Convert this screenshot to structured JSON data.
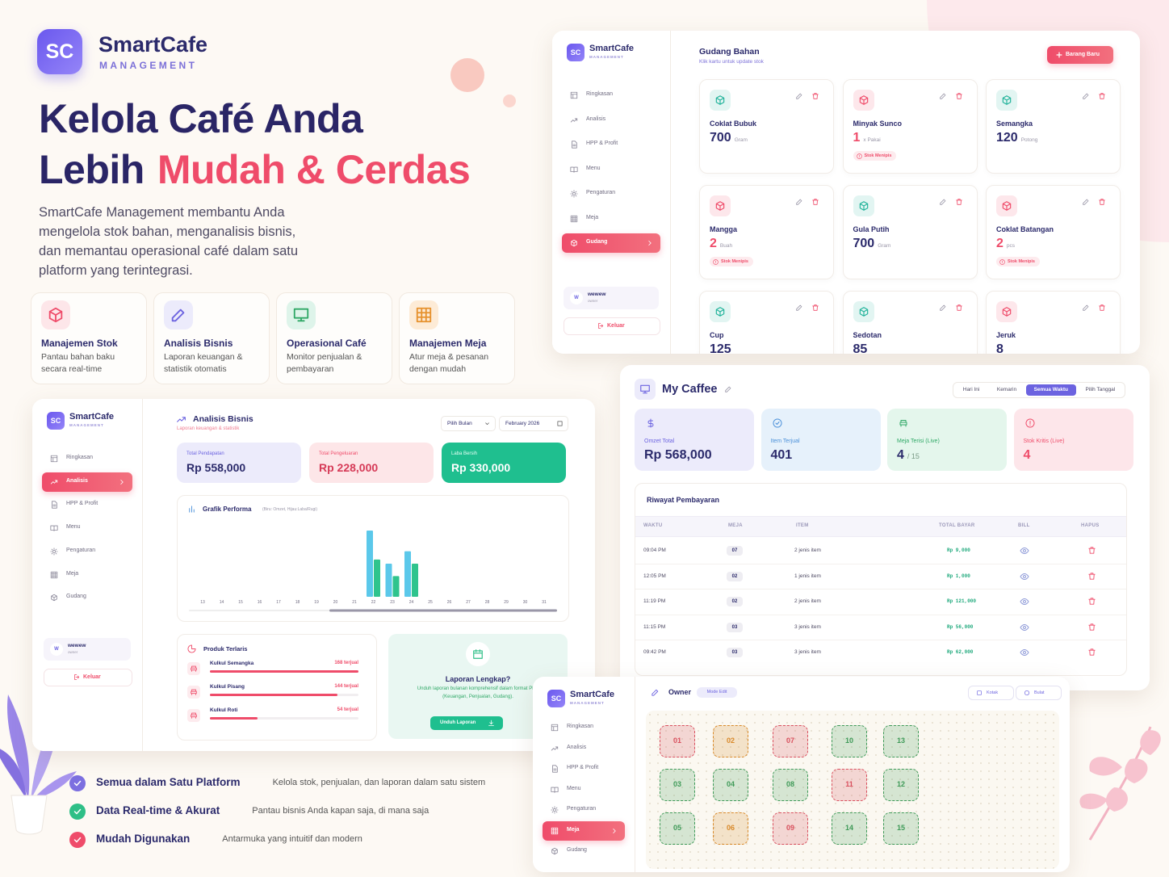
{
  "brand": {
    "logo": "SC",
    "name": "SmartCafe",
    "tagline": "MANAGEMENT"
  },
  "hero": {
    "line1": "Kelola Café Anda",
    "line2_plain": "Lebih",
    "line2_accent": "Mudah & Cerdas",
    "description": "SmartCafe Management membantu Anda mengelola stok bahan, menganalisis bisnis, dan memantau operasional café dalam satu platform yang terintegrasi."
  },
  "features": [
    {
      "title": "Manajemen Stok",
      "description": "Pantau bahan baku secara real-time"
    },
    {
      "title": "Analisis Bisnis",
      "description": "Laporan keuangan & statistik otomatis"
    },
    {
      "title": "Operasional Café",
      "description": "Monitor penjualan & pembayaran"
    },
    {
      "title": "Manajemen Meja",
      "description": "Atur meja & pesanan dengan mudah"
    }
  ],
  "benefits": [
    {
      "title": "Semua dalam Satu Platform",
      "description": "Kelola stok, penjualan, dan laporan dalam satu sistem"
    },
    {
      "title": "Data Real-time & Akurat",
      "description": "Pantau bisnis Anda kapan saja, di mana saja"
    },
    {
      "title": "Mudah Digunakan",
      "description": "Antarmuka yang intuitif dan modern"
    }
  ],
  "sidebar": {
    "items": [
      "Ringkasan",
      "Analisis",
      "HPP & Profit",
      "Menu",
      "Pengaturan",
      "Meja",
      "Gudang"
    ],
    "user": "wewew",
    "role": "owner",
    "user_initial": "W",
    "logout": "Keluar"
  },
  "inventory": {
    "title": "Gudang Bahan",
    "subtitle": "Klik kartu untuk update stok",
    "add_button": "Barang Baru",
    "items": [
      {
        "name": "Coklat Bubuk",
        "qty": 700,
        "unit": "Gram",
        "color": "#22b39b"
      },
      {
        "name": "Minyak Sunco",
        "qty": 1,
        "unit": "x Pakai",
        "warning": "Stok Menipis",
        "color": "#ef4c6a"
      },
      {
        "name": "Semangka",
        "qty": 120,
        "unit": "Potong",
        "color": "#22b39b"
      },
      {
        "name": "Mangga",
        "qty": 2,
        "unit": "Buah",
        "warning": "Stok Menipis",
        "color": "#ef4c6a"
      },
      {
        "name": "Gula Putih",
        "qty": 700,
        "unit": "Gram",
        "color": "#22b39b"
      },
      {
        "name": "Coklat Batangan",
        "qty": 2,
        "unit": "pcs",
        "warning": "Stok Menipis",
        "color": "#ef4c6a"
      },
      {
        "name": "Cup",
        "qty": 125,
        "color": "#22b39b"
      },
      {
        "name": "Sedotan",
        "qty": 85,
        "color": "#22b39b"
      },
      {
        "name": "Jeruk",
        "qty": 8,
        "color": "#ef4c6a"
      }
    ]
  },
  "analysis": {
    "title": "Analisis Bisnis",
    "subtitle": "Laporan keuangan & statistik",
    "month_select": "Pilih Bulan",
    "date": "February 2026",
    "cards": [
      {
        "label": "Total Pendapatan",
        "value": "Rp 558,000"
      },
      {
        "label": "Total Pengeluaran",
        "value": "Rp 228,000"
      },
      {
        "label": "Laba Bersih",
        "value": "Rp 330,000"
      }
    ],
    "chart": {
      "type": "bar",
      "title": "Grafik Performa",
      "note": "(Biru: Omzet, Hijau:Laba/Rugi)",
      "categories": [
        "13",
        "14",
        "15",
        "16",
        "17",
        "18",
        "19",
        "20",
        "21",
        "22",
        "23",
        "24",
        "25",
        "26",
        "27",
        "28",
        "29",
        "30",
        "31"
      ],
      "series": [
        {
          "color": "#5bc8ea",
          "values": [
            null,
            null,
            null,
            null,
            null,
            null,
            null,
            null,
            null,
            80,
            40,
            55,
            null,
            null,
            null,
            null,
            null,
            null,
            null
          ]
        },
        {
          "color": "#2fc48d",
          "values": [
            null,
            null,
            null,
            null,
            null,
            null,
            null,
            null,
            null,
            45,
            25,
            40,
            null,
            null,
            null,
            null,
            null,
            null,
            null
          ]
        }
      ]
    },
    "products": {
      "title": "Produk Terlaris",
      "items": [
        {
          "name": "Kulkul Semangka",
          "sold": 168,
          "sold_label": "168 terjual"
        },
        {
          "name": "Kulkul Pisang",
          "sold": 144,
          "sold_label": "144 terjual"
        },
        {
          "name": "Kulkul Roti",
          "sold": 54,
          "sold_label": "54 terjual"
        }
      ]
    },
    "report": {
      "title": "Laporan Lengkap?",
      "text": "Unduh laporan bulanan komprehensif dalam format PDF (Keuangan, Penjualan, Gudang).",
      "button": "Unduh Laporan"
    }
  },
  "dashboard": {
    "title": "My Caffee",
    "tabs": [
      "Hari Ini",
      "Kemarin",
      "Semua Waktu",
      "Pilih Tanggal"
    ],
    "active_tab": 2,
    "stats": [
      {
        "label": "Omzet Total",
        "value": "Rp 568,000",
        "color": "#6c63e0"
      },
      {
        "label": "Item Terjual",
        "value": "401",
        "color": "#4a90d9"
      },
      {
        "label": "Meja Terisi (Live)",
        "value": "4",
        "suffix": "/ 15",
        "color": "#2fa866"
      },
      {
        "label": "Stok Kritis (Live)",
        "value": "4",
        "color": "#ef4c6a"
      }
    ],
    "history": {
      "title": "Riwayat Pembayaran",
      "columns": [
        "WAKTU",
        "MEJA",
        "ITEM",
        "TOTAL BAYAR",
        "BILL",
        "HAPUS"
      ],
      "rows": [
        [
          "09:04 PM",
          "07",
          "2 jenis item",
          "Rp 9,000"
        ],
        [
          "12:05 PM",
          "02",
          "1 jenis item",
          "Rp 1,000"
        ],
        [
          "11:19 PM",
          "02",
          "2 jenis item",
          "Rp 121,000"
        ],
        [
          "11:15 PM",
          "03",
          "3 jenis item",
          "Rp 56,000"
        ],
        [
          "09:42 PM",
          "03",
          "3 jenis item",
          "Rp 62,000"
        ]
      ]
    }
  },
  "floor": {
    "title": "Owner",
    "mode": "Mode Edit",
    "add_square": "Kotak",
    "add_round": "Bulat",
    "tables": [
      [
        {
          "label": "01",
          "color": "#d9505e"
        },
        {
          "label": "02",
          "color": "#d98a2b"
        },
        {
          "label": "07",
          "color": "#d9505e"
        },
        {
          "label": "10",
          "color": "#3f9a58"
        },
        {
          "label": "13",
          "color": "#3f9a58"
        }
      ],
      [
        {
          "label": "03",
          "color": "#3f9a58"
        },
        {
          "label": "04",
          "color": "#3f9a58"
        },
        {
          "label": "08",
          "color": "#3f9a58"
        },
        {
          "label": "11",
          "color": "#d9505e"
        },
        {
          "label": "12",
          "color": "#3f9a58"
        }
      ],
      [
        {
          "label": "05",
          "color": "#3f9a58"
        },
        {
          "label": "06",
          "color": "#d98a2b"
        },
        {
          "label": "09",
          "color": "#d9505e"
        },
        {
          "label": "14",
          "color": "#3f9a58"
        },
        {
          "label": "15",
          "color": "#3f9a58"
        }
      ]
    ]
  }
}
